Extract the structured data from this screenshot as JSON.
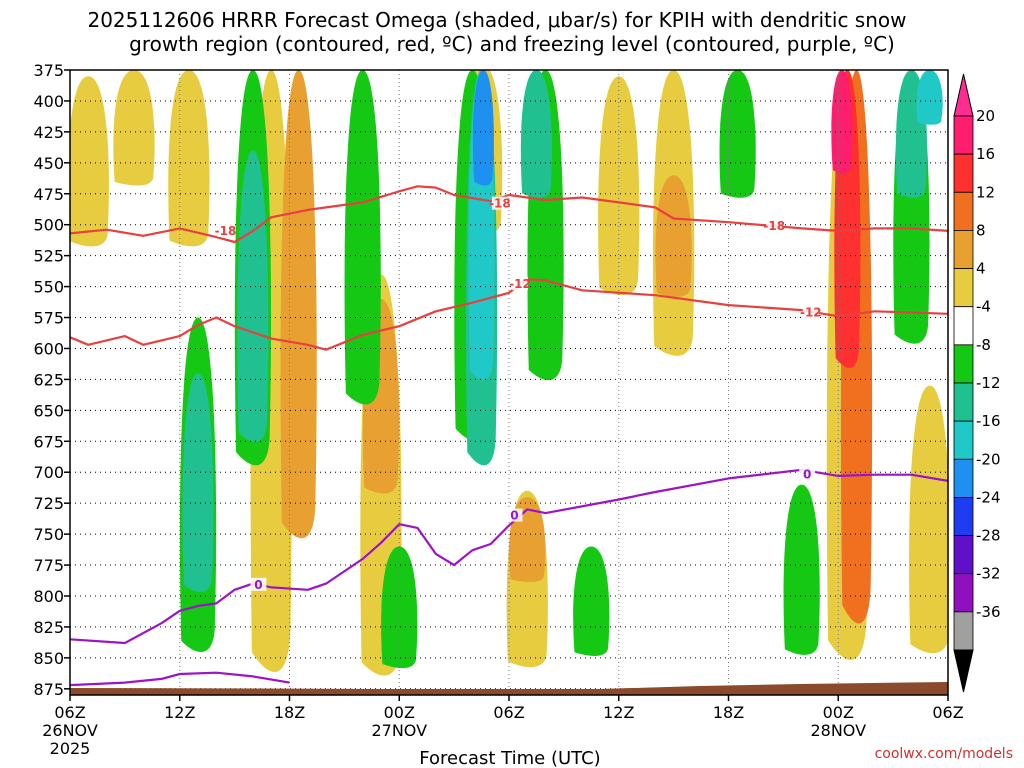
{
  "chart_data": {
    "type": "heatmap",
    "title_lines": [
      "2025112606 HRRR Forecast Omega (shaded, μbar/s) for KPIH with dendritic snow",
      "growth region (contoured, red, ºC) and freezing level (contoured, purple, ºC)"
    ],
    "xlabel": "Forecast Time (UTC)",
    "credit": "coolwx.com/models",
    "x_range_hours": [
      0,
      48
    ],
    "x_ticks": [
      {
        "h": 0,
        "label": "06Z",
        "date": "26NOV",
        "year": "2025"
      },
      {
        "h": 6,
        "label": "12Z"
      },
      {
        "h": 12,
        "label": "18Z"
      },
      {
        "h": 18,
        "label": "00Z",
        "date": "27NOV"
      },
      {
        "h": 24,
        "label": "06Z"
      },
      {
        "h": 30,
        "label": "12Z"
      },
      {
        "h": 36,
        "label": "18Z"
      },
      {
        "h": 42,
        "label": "00Z",
        "date": "28NOV"
      },
      {
        "h": 48,
        "label": "06Z"
      }
    ],
    "y_range_mb": [
      375,
      880
    ],
    "y_ticks": [
      "375",
      "400",
      "425",
      "450",
      "475",
      "500",
      "525",
      "550",
      "575",
      "600",
      "625",
      "650",
      "675",
      "700",
      "725",
      "750",
      "775",
      "800",
      "825",
      "850",
      "875"
    ],
    "colorbar": {
      "labels": [
        "20",
        "16",
        "12",
        "8",
        "4",
        "-4",
        "-8",
        "-12",
        "-16",
        "-20",
        "-24",
        "-28",
        "-32",
        "-36"
      ],
      "colors": [
        "#ff1d6e",
        "#ff3030",
        "#f07020",
        "#e8a030",
        "#e8cc40",
        "#ffffff",
        "#14c814",
        "#20c090",
        "#20c8c8",
        "#1e90f0",
        "#1e3cf0",
        "#6010c8",
        "#9010c0",
        "#a0a0a0"
      ],
      "top_arrow_color": "#ff2d90",
      "bottom_arrow_color": "#000000"
    },
    "contour_labels": {
      "dgz_minus18": "-18",
      "dgz_minus12": "-12",
      "freezing_0": "0"
    },
    "series": [
      {
        "name": "-18C isotherm",
        "color": "#e84040",
        "points": [
          [
            0,
            507
          ],
          [
            2,
            504
          ],
          [
            4,
            509
          ],
          [
            6,
            503
          ],
          [
            8,
            510
          ],
          [
            9,
            514
          ],
          [
            10,
            505
          ],
          [
            11,
            494
          ],
          [
            13,
            488
          ],
          [
            16,
            482
          ],
          [
            18,
            473
          ],
          [
            19,
            469
          ],
          [
            20,
            470
          ],
          [
            21,
            476
          ],
          [
            23,
            481
          ],
          [
            24,
            476
          ],
          [
            26,
            480
          ],
          [
            28,
            478
          ],
          [
            30,
            482
          ],
          [
            32,
            486
          ],
          [
            33,
            495
          ],
          [
            36,
            498
          ],
          [
            40,
            503
          ],
          [
            42,
            505
          ],
          [
            44,
            503
          ],
          [
            46,
            503
          ],
          [
            48,
            505
          ]
        ]
      },
      {
        "name": "-12C isotherm",
        "color": "#e84040",
        "points": [
          [
            0,
            591
          ],
          [
            1,
            597
          ],
          [
            3,
            590
          ],
          [
            4,
            597
          ],
          [
            6,
            590
          ],
          [
            7,
            581
          ],
          [
            8,
            575
          ],
          [
            9,
            582
          ],
          [
            11,
            592
          ],
          [
            13,
            597
          ],
          [
            14,
            601
          ],
          [
            16,
            589
          ],
          [
            18,
            582
          ],
          [
            20,
            570
          ],
          [
            22,
            563
          ],
          [
            24,
            555
          ],
          [
            25,
            544
          ],
          [
            26,
            545
          ],
          [
            28,
            553
          ],
          [
            32,
            557
          ],
          [
            36,
            565
          ],
          [
            40,
            569
          ],
          [
            42,
            574
          ],
          [
            44,
            570
          ],
          [
            48,
            572
          ]
        ]
      },
      {
        "name": "0C freezing level",
        "color": "#9b14c8",
        "points": [
          [
            0,
            835
          ],
          [
            3,
            838
          ],
          [
            5,
            822
          ],
          [
            6,
            812
          ],
          [
            7,
            808
          ],
          [
            8,
            806
          ],
          [
            9,
            795
          ],
          [
            10,
            790
          ],
          [
            11,
            793
          ],
          [
            13,
            795
          ],
          [
            14,
            790
          ],
          [
            16,
            770
          ],
          [
            17,
            757
          ],
          [
            18,
            742
          ],
          [
            19,
            745
          ],
          [
            20,
            766
          ],
          [
            21,
            775
          ],
          [
            22,
            763
          ],
          [
            23,
            758
          ],
          [
            24,
            743
          ],
          [
            25,
            730
          ],
          [
            26,
            733
          ],
          [
            30,
            722
          ],
          [
            32,
            716
          ],
          [
            36,
            705
          ],
          [
            40,
            698
          ],
          [
            42,
            703
          ],
          [
            44,
            702
          ],
          [
            46,
            702
          ],
          [
            48,
            707
          ]
        ]
      },
      {
        "name": "0C near surface",
        "color": "#9b14c8",
        "points": [
          [
            0,
            872
          ],
          [
            3,
            870
          ],
          [
            5,
            867
          ],
          [
            6,
            863
          ],
          [
            8,
            862
          ],
          [
            10,
            865
          ],
          [
            12,
            870
          ]
        ]
      }
    ],
    "omega_regions": [
      {
        "value": 4,
        "x": 1,
        "p": [
          380,
          520
        ]
      },
      {
        "value": 4,
        "x": 3.5,
        "p": [
          375,
          470
        ]
      },
      {
        "value": 4,
        "x": 6.5,
        "p": [
          375,
          520
        ]
      },
      {
        "value": 4,
        "x": 11,
        "p": [
          375,
          870
        ]
      },
      {
        "value": 8,
        "x": 12.5,
        "p": [
          375,
          760
        ]
      },
      {
        "value": 4,
        "x": 17,
        "p": [
          540,
          870
        ]
      },
      {
        "value": 8,
        "x": 17,
        "p": [
          560,
          720
        ]
      },
      {
        "value": 4,
        "x": 22.5,
        "p": [
          370,
          510
        ]
      },
      {
        "value": 4,
        "x": 25,
        "p": [
          715,
          860
        ]
      },
      {
        "value": 8,
        "x": 25,
        "p": [
          720,
          790
        ]
      },
      {
        "value": 4,
        "x": 30,
        "p": [
          380,
          560
        ]
      },
      {
        "value": 4,
        "x": 33,
        "p": [
          375,
          610
        ]
      },
      {
        "value": 8,
        "x": 33,
        "p": [
          460,
          560
        ]
      },
      {
        "value": 4,
        "x": 42.5,
        "p": [
          375,
          860
        ]
      },
      {
        "value": 12,
        "x": 43,
        "p": [
          375,
          830
        ]
      },
      {
        "value": 16,
        "x": 42.5,
        "p": [
          375,
          620
        ]
      },
      {
        "value": 20,
        "x": 42.2,
        "p": [
          375,
          460
        ]
      },
      {
        "value": 4,
        "x": 47,
        "p": [
          630,
          850
        ]
      },
      {
        "value": -8,
        "x": 7,
        "p": [
          575,
          850
        ]
      },
      {
        "value": -12,
        "x": 7,
        "p": [
          620,
          800
        ]
      },
      {
        "value": -8,
        "x": 10,
        "p": [
          375,
          700
        ]
      },
      {
        "value": -12,
        "x": 10,
        "p": [
          440,
          680
        ]
      },
      {
        "value": -8,
        "x": 16,
        "p": [
          375,
          650
        ]
      },
      {
        "value": -8,
        "x": 18,
        "p": [
          760,
          860
        ]
      },
      {
        "value": -8,
        "x": 22,
        "p": [
          375,
          680
        ]
      },
      {
        "value": -12,
        "x": 22.5,
        "p": [
          375,
          700
        ]
      },
      {
        "value": -16,
        "x": 22.5,
        "p": [
          375,
          630
        ]
      },
      {
        "value": -20,
        "x": 22.6,
        "p": [
          375,
          470
        ]
      },
      {
        "value": -8,
        "x": 26,
        "p": [
          375,
          630
        ]
      },
      {
        "value": -12,
        "x": 25.5,
        "p": [
          375,
          480
        ]
      },
      {
        "value": -8,
        "x": 28.5,
        "p": [
          760,
          850
        ]
      },
      {
        "value": -8,
        "x": 36.5,
        "p": [
          375,
          480
        ]
      },
      {
        "value": -8,
        "x": 40,
        "p": [
          710,
          850
        ]
      },
      {
        "value": -8,
        "x": 46,
        "p": [
          375,
          600
        ]
      },
      {
        "value": -12,
        "x": 46,
        "p": [
          375,
          480
        ]
      },
      {
        "value": -16,
        "x": 47,
        "p": [
          375,
          420
        ]
      }
    ]
  }
}
